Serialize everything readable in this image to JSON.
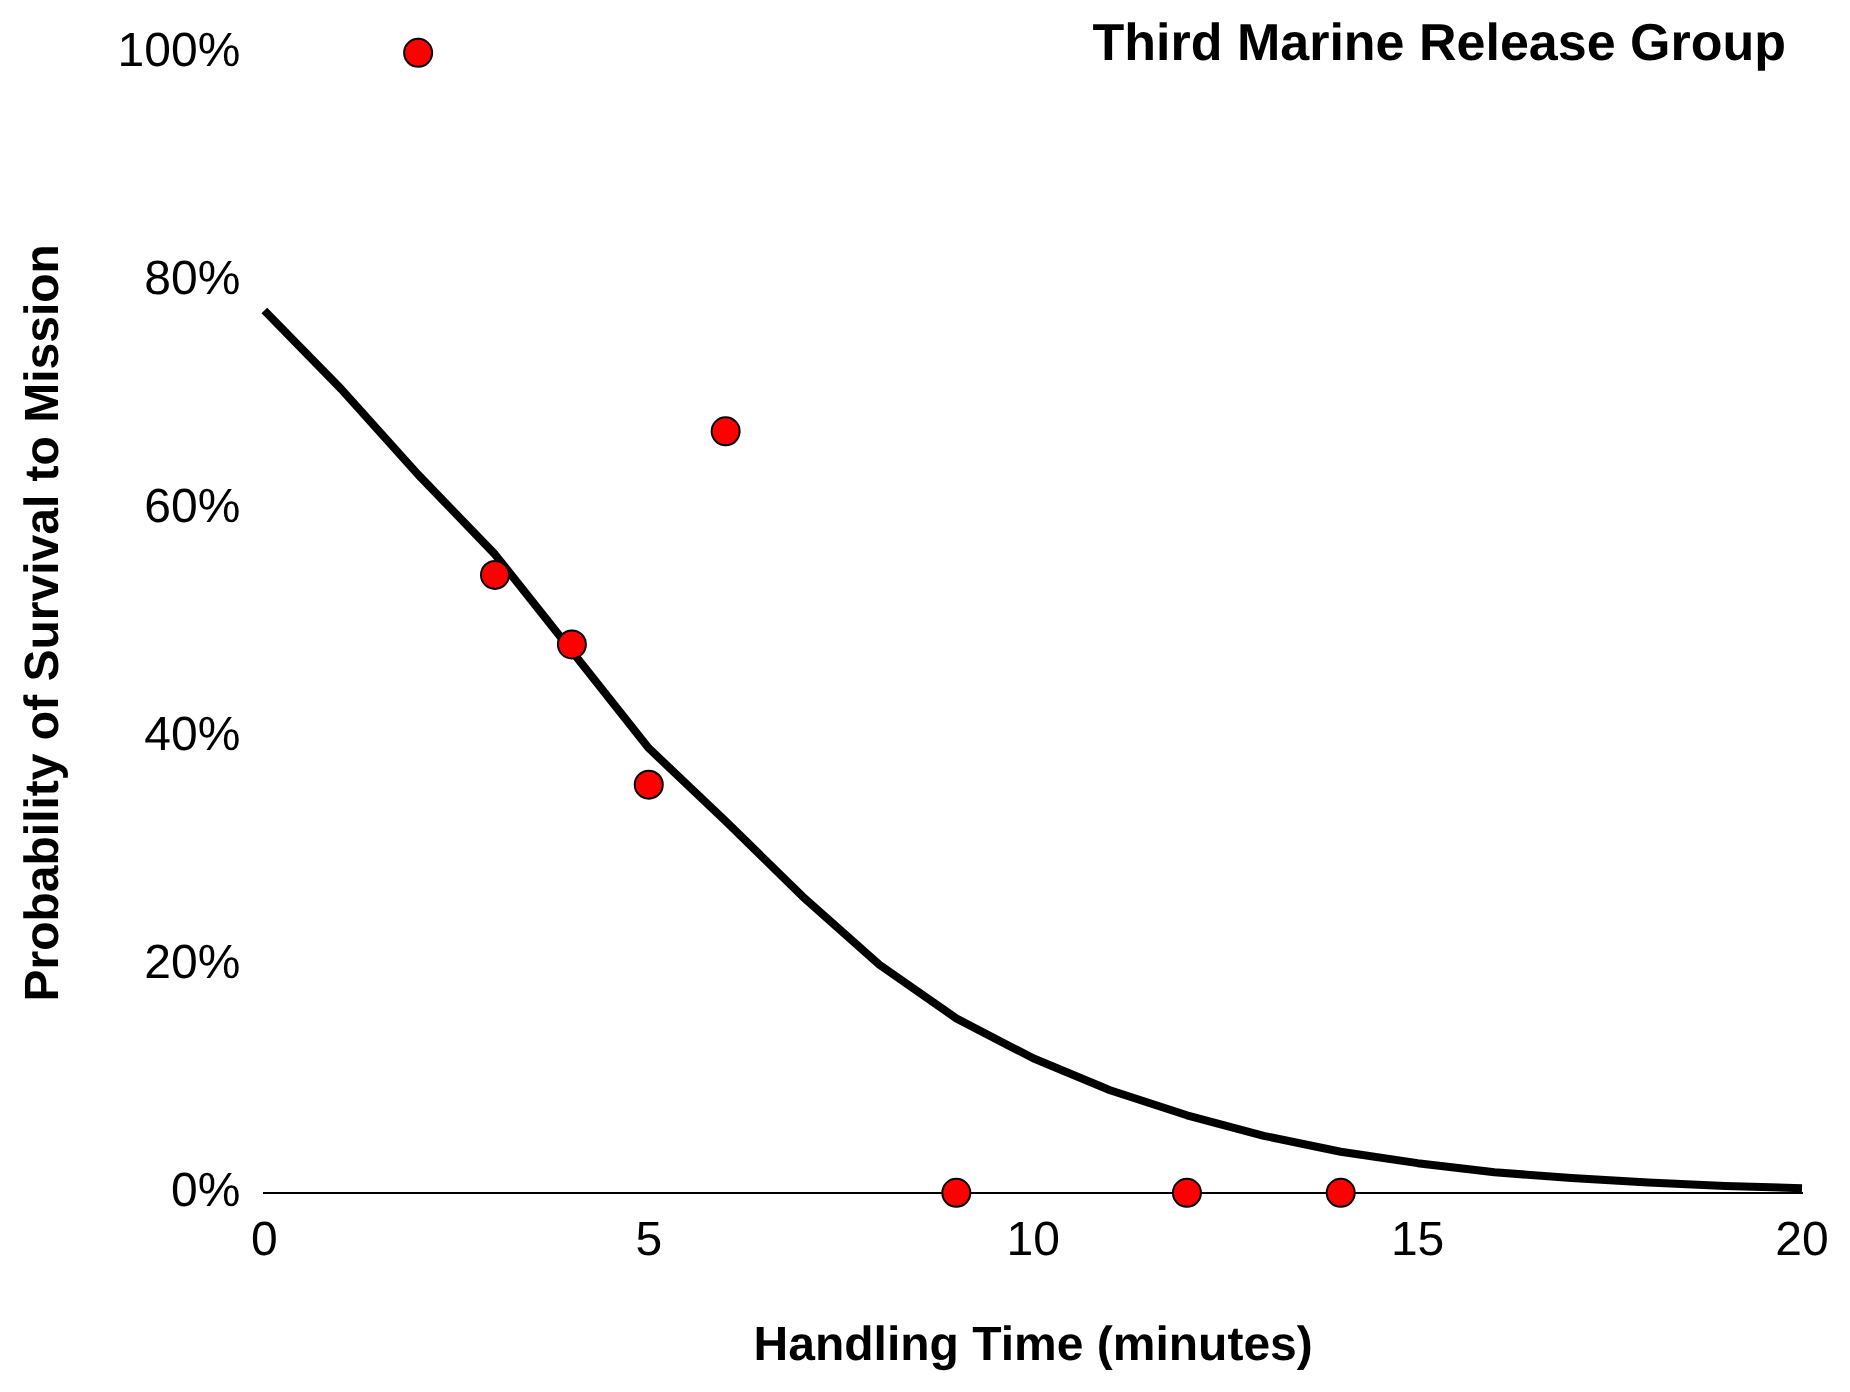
{
  "chart_data": {
    "type": "scatter",
    "title": "Third Marine Release Group",
    "xlabel": "Handling Time (minutes)",
    "ylabel": "Probability of Survival to Mission",
    "xlim": [
      0,
      20
    ],
    "xticks": [
      0,
      5,
      10,
      15,
      20
    ],
    "ylim": [
      0,
      100
    ],
    "yticks": [
      {
        "value": 0,
        "label": "0%"
      },
      {
        "value": 20,
        "label": "20%"
      },
      {
        "value": 40,
        "label": "40%"
      },
      {
        "value": 60,
        "label": "60%"
      },
      {
        "value": 80,
        "label": "80%"
      },
      {
        "value": 100,
        "label": "100%"
      }
    ],
    "grid": false,
    "legend": false,
    "marker": "circle",
    "series": [
      {
        "color": "#ff0000",
        "x": [
          2,
          3,
          4,
          5,
          6,
          9,
          12,
          14
        ],
        "values": [
          100,
          54.2,
          48.1,
          35.8,
          66.8,
          0,
          0,
          0
        ]
      },
      {
        "type": "line",
        "color": "#000000",
        "marker": "none",
        "x": [
          0,
          1,
          2,
          3,
          4,
          5,
          6,
          7,
          8,
          9,
          10,
          11,
          12,
          13,
          14,
          15,
          16,
          17,
          18,
          19,
          20
        ],
        "values": [
          77.4,
          70.5,
          63,
          56,
          47.5,
          39,
          32.6,
          26,
          20,
          15.3,
          11.8,
          9,
          6.8,
          5,
          3.6,
          2.6,
          1.8,
          1.3,
          0.9,
          0.6,
          0.4
        ]
      }
    ]
  }
}
